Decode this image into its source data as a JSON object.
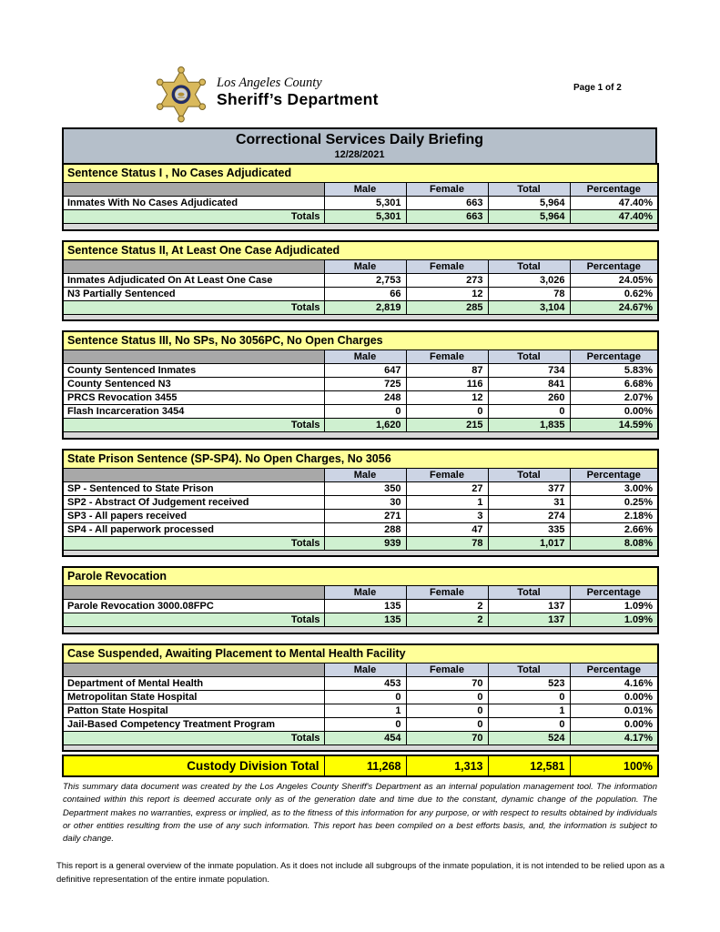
{
  "page": {
    "page_indicator": "Page 1 of 2"
  },
  "header": {
    "badge_icon": "sheriff-star-badge",
    "agency_line1": "Los Angeles County",
    "agency_line2": "Sheriff’s Department"
  },
  "title_bar": {
    "title": "Correctional Services Daily Briefing",
    "date": "12/28/2021"
  },
  "table": {
    "columns": [
      "Male",
      "Female",
      "Total",
      "Percentage"
    ],
    "sections": [
      {
        "title": "Sentence Status I , No Cases Adjudicated",
        "rows": [
          {
            "label": "Inmates With No Cases Adjudicated",
            "values": [
              "5,301",
              "663",
              "5,964",
              "47.40%"
            ]
          }
        ],
        "totals": {
          "label": "Totals",
          "values": [
            "5,301",
            "663",
            "5,964",
            "47.40%"
          ]
        }
      },
      {
        "title": "Sentence Status II, At Least One Case Adjudicated",
        "rows": [
          {
            "label": "Inmates Adjudicated On At Least One Case",
            "values": [
              "2,753",
              "273",
              "3,026",
              "24.05%"
            ]
          },
          {
            "label": "N3 Partially Sentenced",
            "values": [
              "66",
              "12",
              "78",
              "0.62%"
            ]
          }
        ],
        "totals": {
          "label": "Totals",
          "values": [
            "2,819",
            "285",
            "3,104",
            "24.67%"
          ]
        }
      },
      {
        "title": "Sentence Status III, No SPs, No 3056PC, No Open Charges",
        "rows": [
          {
            "label": "County Sentenced Inmates",
            "values": [
              "647",
              "87",
              "734",
              "5.83%"
            ]
          },
          {
            "label": "County Sentenced N3",
            "values": [
              "725",
              "116",
              "841",
              "6.68%"
            ]
          },
          {
            "label": "PRCS Revocation 3455",
            "values": [
              "248",
              "12",
              "260",
              "2.07%"
            ]
          },
          {
            "label": "Flash Incarceration 3454",
            "values": [
              "0",
              "0",
              "0",
              "0.00%"
            ]
          }
        ],
        "totals": {
          "label": "Totals",
          "values": [
            "1,620",
            "215",
            "1,835",
            "14.59%"
          ]
        }
      },
      {
        "title": "State Prison Sentence (SP-SP4). No Open Charges, No 3056",
        "rows": [
          {
            "label": "SP - Sentenced to State Prison",
            "values": [
              "350",
              "27",
              "377",
              "3.00%"
            ]
          },
          {
            "label": "SP2 - Abstract Of Judgement received",
            "values": [
              "30",
              "1",
              "31",
              "0.25%"
            ]
          },
          {
            "label": "SP3 - All papers received",
            "values": [
              "271",
              "3",
              "274",
              "2.18%"
            ]
          },
          {
            "label": "SP4 - All paperwork processed",
            "values": [
              "288",
              "47",
              "335",
              "2.66%"
            ]
          }
        ],
        "totals": {
          "label": "Totals",
          "values": [
            "939",
            "78",
            "1,017",
            "8.08%"
          ]
        }
      },
      {
        "title": "Parole Revocation",
        "rows": [
          {
            "label": "Parole Revocation 3000.08FPC",
            "values": [
              "135",
              "2",
              "137",
              "1.09%"
            ]
          }
        ],
        "totals": {
          "label": "Totals",
          "values": [
            "135",
            "2",
            "137",
            "1.09%"
          ]
        }
      },
      {
        "title": "Case Suspended, Awaiting Placement to Mental Health Facility",
        "rows": [
          {
            "label": "Department of Mental Health",
            "values": [
              "453",
              "70",
              "523",
              "4.16%"
            ]
          },
          {
            "label": "Metropolitan State Hospital",
            "values": [
              "0",
              "0",
              "0",
              "0.00%"
            ]
          },
          {
            "label": "Patton State Hospital",
            "values": [
              "1",
              "0",
              "1",
              "0.01%"
            ]
          },
          {
            "label": "Jail-Based Competency Treatment Program",
            "values": [
              "0",
              "0",
              "0",
              "0.00%"
            ]
          }
        ],
        "totals": {
          "label": "Totals",
          "values": [
            "454",
            "70",
            "524",
            "4.17%"
          ]
        }
      }
    ],
    "grand_total": {
      "label": "Custody Division Total",
      "values": [
        "11,268",
        "1,313",
        "12,581",
        "100%"
      ]
    }
  },
  "notes": {
    "disclaimer": "This summary data document was created by the Los Angeles County Sheriff's Department as an internal population management tool.  The information contained within this report is deemed accurate only as of the generation date and time due to the constant, dynamic change of the population.  The Department makes no warranties, express or implied, as to the fitness of this information for any purpose, or with respect to results obtained by individuals or other entities resulting from the use of any such information.  This report has been compiled on a best efforts basis, and, the information is subject to daily change.",
    "footer": "This report is a general overview of the inmate population.  As it does not include all subgroups of the inmate population, it is not intended to be relied upon as a definitive representation of the entire inmate population."
  },
  "colors": {
    "title_bar_bg": "#b5bfca",
    "section_header_bg": "#ffff99",
    "column_header_bg": "#ccd4e4",
    "header_stub_bg": "#a8a8a8",
    "totals_row_bg": "#cff0d0",
    "spacer_bg": "#d9d9d9",
    "grand_total_bg": "#ffff00",
    "badge_gold": "#d4af37",
    "badge_navy": "#232d66"
  }
}
